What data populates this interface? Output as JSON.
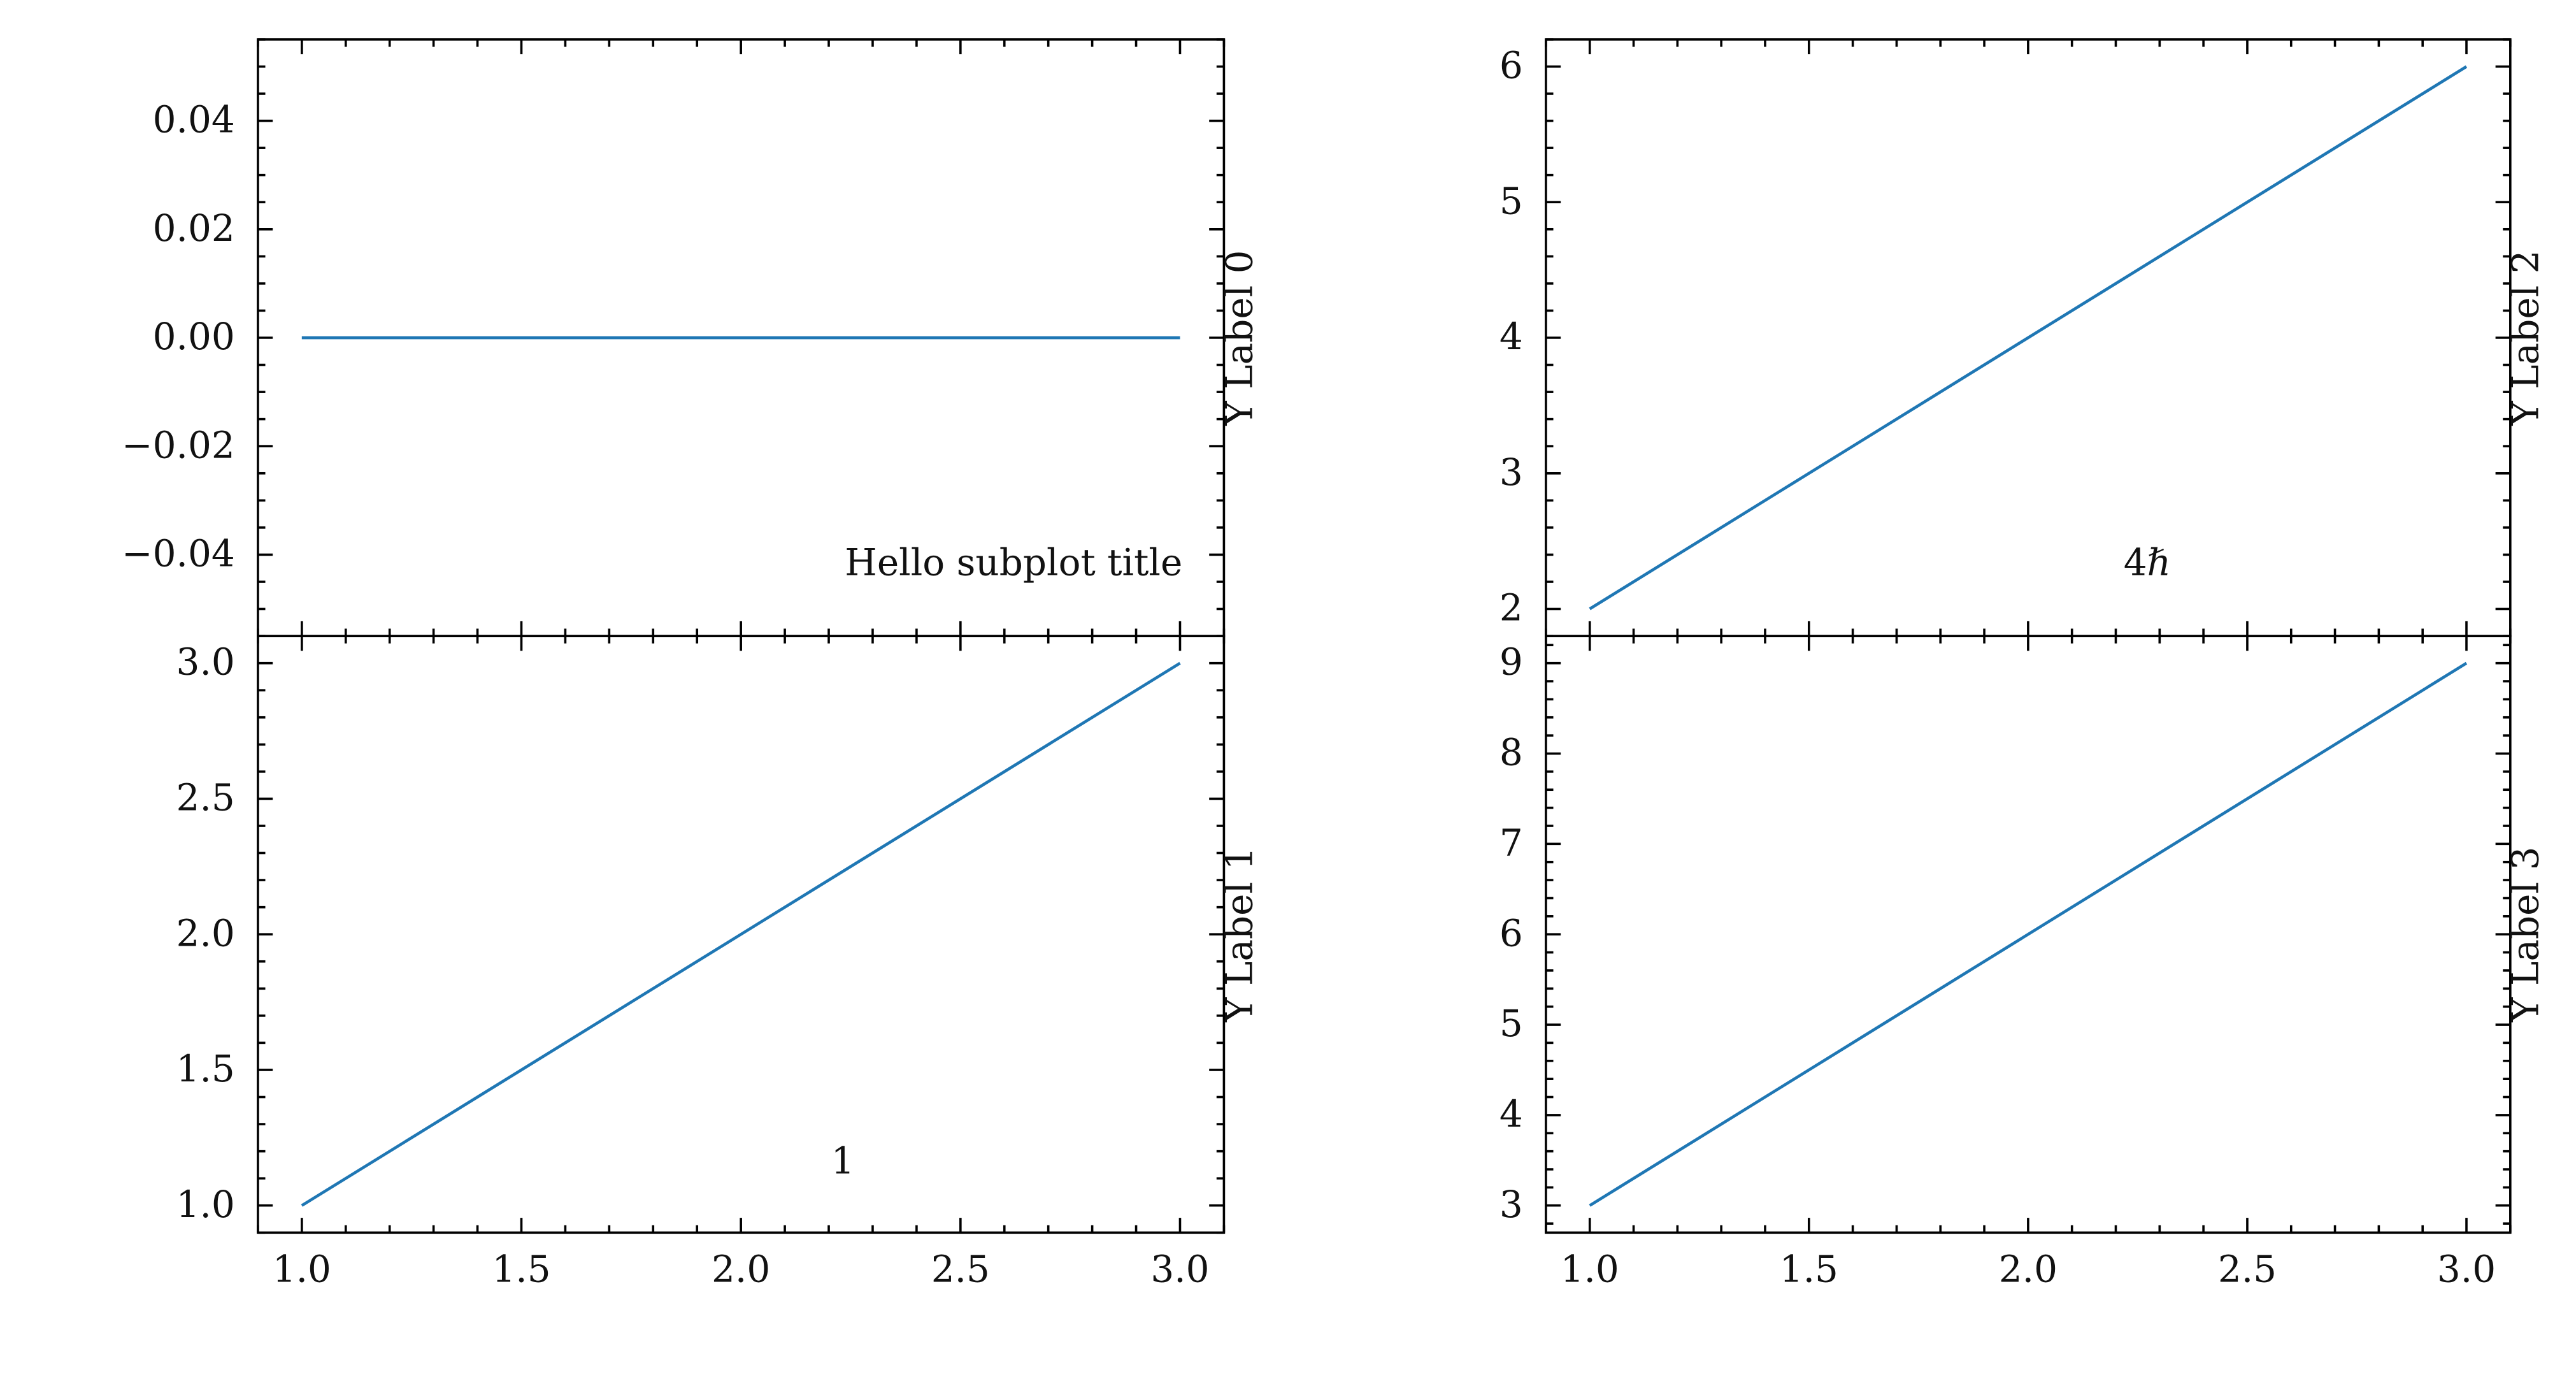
{
  "chart_data": [
    {
      "type": "line",
      "panel": "top-left",
      "annotation": "Hello subplot title",
      "ylabel": "Y Label 0",
      "xlim": [
        0.9,
        3.1
      ],
      "ylim": [
        -0.055,
        0.055
      ],
      "yticks": [
        -0.04,
        -0.02,
        0.0,
        0.02,
        0.04
      ],
      "yticklabels": [
        "−0.04",
        "−0.02",
        "0.00",
        "0.02",
        "0.04"
      ],
      "xticks": [
        1.0,
        1.5,
        2.0,
        2.5,
        3.0
      ],
      "show_xticklabels": false,
      "series": [
        {
          "x": [
            1.0,
            2.0,
            3.0
          ],
          "y": [
            0.0,
            0.0,
            0.0
          ],
          "color": "#1f77b4"
        }
      ]
    },
    {
      "type": "line",
      "panel": "bottom-left",
      "annotation": "1",
      "ylabel": "Y Label 1",
      "xlim": [
        0.9,
        3.1
      ],
      "ylim": [
        0.9,
        3.1
      ],
      "yticks": [
        1.0,
        1.5,
        2.0,
        2.5,
        3.0
      ],
      "yticklabels": [
        "1.0",
        "1.5",
        "2.0",
        "2.5",
        "3.0"
      ],
      "xticks": [
        1.0,
        1.5,
        2.0,
        2.5,
        3.0
      ],
      "xticklabels": [
        "1.0",
        "1.5",
        "2.0",
        "2.5",
        "3.0"
      ],
      "show_xticklabels": true,
      "series": [
        {
          "x": [
            1.0,
            2.0,
            3.0
          ],
          "y": [
            1.0,
            2.0,
            3.0
          ],
          "color": "#1f77b4"
        }
      ]
    },
    {
      "type": "line",
      "panel": "top-right",
      "annotation": "4ℏ",
      "ylabel": "Y Label 2",
      "xlim": [
        0.9,
        3.1
      ],
      "ylim": [
        1.8,
        6.2
      ],
      "yticks": [
        2,
        3,
        4,
        5,
        6
      ],
      "yticklabels": [
        "2",
        "3",
        "4",
        "5",
        "6"
      ],
      "xticks": [
        1.0,
        1.5,
        2.0,
        2.5,
        3.0
      ],
      "show_xticklabels": false,
      "series": [
        {
          "x": [
            1.0,
            2.0,
            3.0
          ],
          "y": [
            2.0,
            4.0,
            6.0
          ],
          "color": "#1f77b4"
        }
      ]
    },
    {
      "type": "line",
      "panel": "bottom-right",
      "annotation": "",
      "ylabel": "Y Label 3",
      "xlim": [
        0.9,
        3.1
      ],
      "ylim": [
        2.7,
        9.3
      ],
      "yticks": [
        3,
        4,
        5,
        6,
        7,
        8,
        9
      ],
      "yticklabels": [
        "3",
        "4",
        "5",
        "6",
        "7",
        "8",
        "9"
      ],
      "xticks": [
        1.0,
        1.5,
        2.0,
        2.5,
        3.0
      ],
      "xticklabels": [
        "1.0",
        "1.5",
        "2.0",
        "2.5",
        "3.0"
      ],
      "show_xticklabels": true,
      "series": [
        {
          "x": [
            1.0,
            2.0,
            3.0
          ],
          "y": [
            3.0,
            6.0,
            9.0
          ],
          "color": "#1f77b4"
        }
      ]
    }
  ]
}
